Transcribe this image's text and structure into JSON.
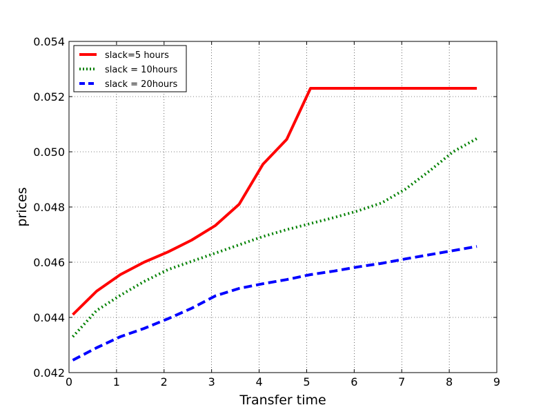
{
  "chart_data": {
    "type": "line",
    "title": "",
    "xlabel": "Transfer time",
    "ylabel": "prices",
    "xlim": [
      0,
      9
    ],
    "ylim": [
      0.042,
      0.054
    ],
    "x_ticks": [
      0,
      1,
      2,
      3,
      4,
      5,
      6,
      7,
      8,
      9
    ],
    "x_tick_labels": [
      "0",
      "1",
      "2",
      "3",
      "4",
      "5",
      "6",
      "7",
      "8",
      "9"
    ],
    "y_ticks": [
      0.042,
      0.044,
      0.046,
      0.048,
      0.05,
      0.052,
      0.054
    ],
    "y_tick_labels": [
      "0.042",
      "0.044",
      "0.046",
      "0.048",
      "0.050",
      "0.052",
      "0.054"
    ],
    "grid": true,
    "legend_position": "top-left",
    "series": [
      {
        "name": "slack=5 hours",
        "color": "#ff0000",
        "line_style": "solid",
        "points": [
          [
            0.08,
            0.0441
          ],
          [
            0.58,
            0.04495
          ],
          [
            1.08,
            0.04555
          ],
          [
            1.58,
            0.046
          ],
          [
            2.08,
            0.04637
          ],
          [
            2.58,
            0.0468
          ],
          [
            3.08,
            0.04733
          ],
          [
            3.58,
            0.0481
          ],
          [
            4.08,
            0.04955
          ],
          [
            4.58,
            0.05045
          ],
          [
            5.08,
            0.0523
          ],
          [
            5.58,
            0.0523
          ],
          [
            6.08,
            0.0523
          ],
          [
            6.58,
            0.0523
          ],
          [
            7.08,
            0.0523
          ],
          [
            7.58,
            0.0523
          ],
          [
            8.08,
            0.0523
          ],
          [
            8.58,
            0.0523
          ]
        ]
      },
      {
        "name": "slack = 10hours",
        "color": "#008000",
        "line_style": "dotted",
        "points": [
          [
            0.08,
            0.0433
          ],
          [
            0.58,
            0.04425
          ],
          [
            1.08,
            0.0448
          ],
          [
            1.58,
            0.0453
          ],
          [
            2.08,
            0.04573
          ],
          [
            2.58,
            0.04603
          ],
          [
            3.08,
            0.04633
          ],
          [
            3.58,
            0.04663
          ],
          [
            4.08,
            0.04693
          ],
          [
            4.58,
            0.04718
          ],
          [
            5.08,
            0.0474
          ],
          [
            5.58,
            0.04762
          ],
          [
            6.08,
            0.04786
          ],
          [
            6.58,
            0.04815
          ],
          [
            7.08,
            0.04865
          ],
          [
            7.58,
            0.0493
          ],
          [
            8.08,
            0.05
          ],
          [
            8.58,
            0.05048
          ]
        ]
      },
      {
        "name": "slack = 20hours",
        "color": "#0000ff",
        "line_style": "dashed",
        "points": [
          [
            0.08,
            0.04245
          ],
          [
            0.58,
            0.0429
          ],
          [
            1.08,
            0.0433
          ],
          [
            1.58,
            0.0436
          ],
          [
            2.08,
            0.04395
          ],
          [
            2.58,
            0.04433
          ],
          [
            3.08,
            0.04478
          ],
          [
            3.58,
            0.04505
          ],
          [
            4.08,
            0.04522
          ],
          [
            4.58,
            0.04537
          ],
          [
            5.08,
            0.04555
          ],
          [
            5.58,
            0.04568
          ],
          [
            6.08,
            0.04583
          ],
          [
            6.58,
            0.04596
          ],
          [
            7.08,
            0.04612
          ],
          [
            7.58,
            0.04627
          ],
          [
            8.08,
            0.04642
          ],
          [
            8.58,
            0.04657
          ]
        ]
      }
    ]
  }
}
